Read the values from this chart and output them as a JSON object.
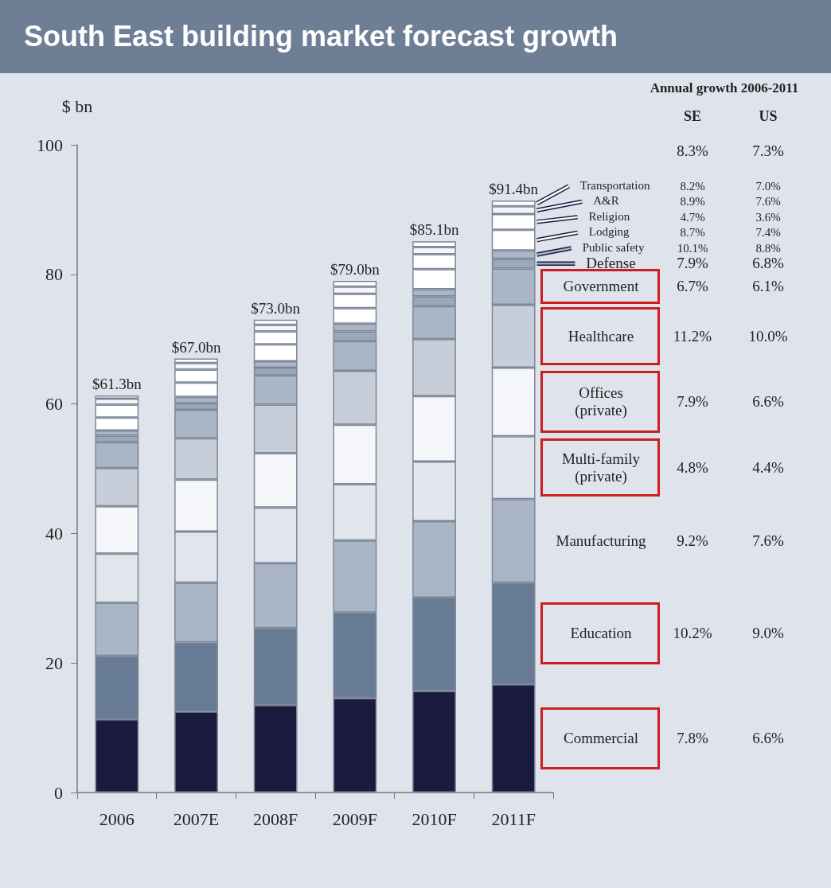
{
  "chart_data": {
    "type": "bar",
    "title": "South East building market forecast growth",
    "ylabel": "$ bn",
    "categories": [
      "2006",
      "2007E",
      "2008F",
      "2009F",
      "2010F",
      "2011F"
    ],
    "stacked": true,
    "legend": "right",
    "ylim": [
      0,
      100
    ],
    "yticks": [
      0,
      20,
      40,
      60,
      80,
      100
    ],
    "totals": [
      "$61.3bn",
      "$67.0bn",
      "$73.0bn",
      "$79.0bn",
      "$85.1bn",
      "$91.4bn"
    ],
    "series": [
      {
        "name": "Commercial",
        "color": "#1b1b3f",
        "values": [
          11.3,
          12.5,
          13.5,
          14.6,
          15.7,
          16.7
        ]
      },
      {
        "name": "Education",
        "color": "#687b95",
        "values": [
          9.8,
          10.7,
          11.9,
          13.2,
          14.4,
          15.7
        ]
      },
      {
        "name": "Manufacturing",
        "color": "#aab5c5",
        "values": [
          8.2,
          9.2,
          10.0,
          11.1,
          11.8,
          12.9
        ]
      },
      {
        "name": "Multi-family (private)",
        "color": "#e1e6ed",
        "values": [
          7.6,
          7.9,
          8.6,
          8.7,
          9.2,
          9.7
        ]
      },
      {
        "name": "Offices (private)",
        "color": "#f4f6f9",
        "values": [
          7.3,
          8.0,
          8.4,
          9.2,
          10.1,
          10.6
        ]
      },
      {
        "name": "Healthcare",
        "color": "#c8ced9",
        "values": [
          5.9,
          6.4,
          7.5,
          8.3,
          8.8,
          9.7
        ]
      },
      {
        "name": "Government",
        "color": "#aab5c5",
        "values": [
          4.0,
          4.4,
          4.5,
          4.6,
          5.1,
          5.6
        ]
      },
      {
        "name": "Defense",
        "color": "#9ba8ba",
        "values": [
          1.0,
          1.0,
          1.2,
          1.5,
          1.5,
          1.5
        ]
      },
      {
        "name": "Public safety",
        "color": "#aab5c5",
        "values": [
          0.8,
          1.0,
          1.0,
          1.2,
          1.1,
          1.3
        ]
      },
      {
        "name": "Lodging",
        "color": "#ffffff",
        "values": [
          2.0,
          2.2,
          2.6,
          2.4,
          3.1,
          3.2
        ]
      },
      {
        "name": "Religion",
        "color": "#ffffff",
        "values": [
          2.0,
          2.0,
          2.0,
          2.2,
          2.3,
          2.4
        ]
      },
      {
        "name": "A&R",
        "color": "#f4f6f9",
        "values": [
          0.9,
          1.0,
          1.0,
          1.1,
          1.1,
          1.2
        ]
      },
      {
        "name": "Transportation",
        "color": "#ffffff",
        "values": [
          0.5,
          0.7,
          0.8,
          0.9,
          0.9,
          0.9
        ]
      }
    ],
    "annotations": [
      "Annual growth 2006-2011",
      "SE",
      "US",
      "8.3%",
      "7.3%",
      "7.8%",
      "6.6%",
      "10.2%",
      "9.0%",
      "9.2%",
      "7.6%",
      "4.8%",
      "4.4%",
      "7.9%",
      "6.6%",
      "11.2%",
      "10.0%",
      "6.7%",
      "6.1%",
      "7.9%",
      "6.8%",
      "10.1%",
      "8.8%",
      "8.7%",
      "7.4%",
      "4.7%",
      "3.6%",
      "8.9%",
      "7.6%",
      "8.2%",
      "7.0%"
    ]
  }
}
